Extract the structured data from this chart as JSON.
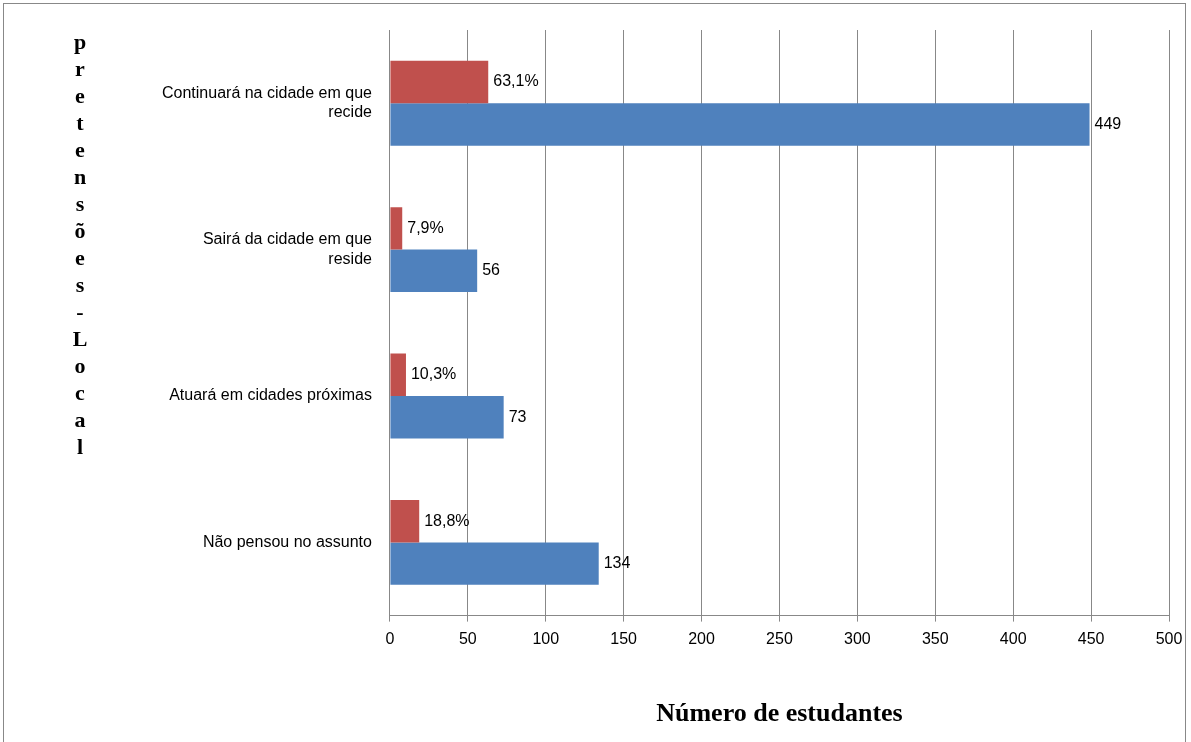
{
  "chart_data": {
    "type": "bar",
    "orientation": "horizontal",
    "xlabel": "Número de estudantes",
    "ylabel": "pretensões - Local",
    "categories": [
      "Continuará na cidade em que recide",
      "Sairá da cidade em que reside",
      "Atuará em cidades próximas",
      "Não pensou no assunto"
    ],
    "series": [
      {
        "color": "#c0504d",
        "values": [
          63.1,
          7.9,
          10.3,
          18.8
        ],
        "value_labels": [
          "63,1%",
          "7,9%",
          "10,3%",
          "18,8%"
        ]
      },
      {
        "color": "#4f81bd",
        "values": [
          449,
          56,
          73,
          134
        ],
        "value_labels": [
          "449",
          "56",
          "73",
          "134"
        ]
      }
    ],
    "xlim": [
      0,
      500
    ],
    "xticks": [
      0,
      50,
      100,
      150,
      200,
      250,
      300,
      350,
      400,
      450,
      500
    ],
    "grid": "x",
    "legend": false
  }
}
